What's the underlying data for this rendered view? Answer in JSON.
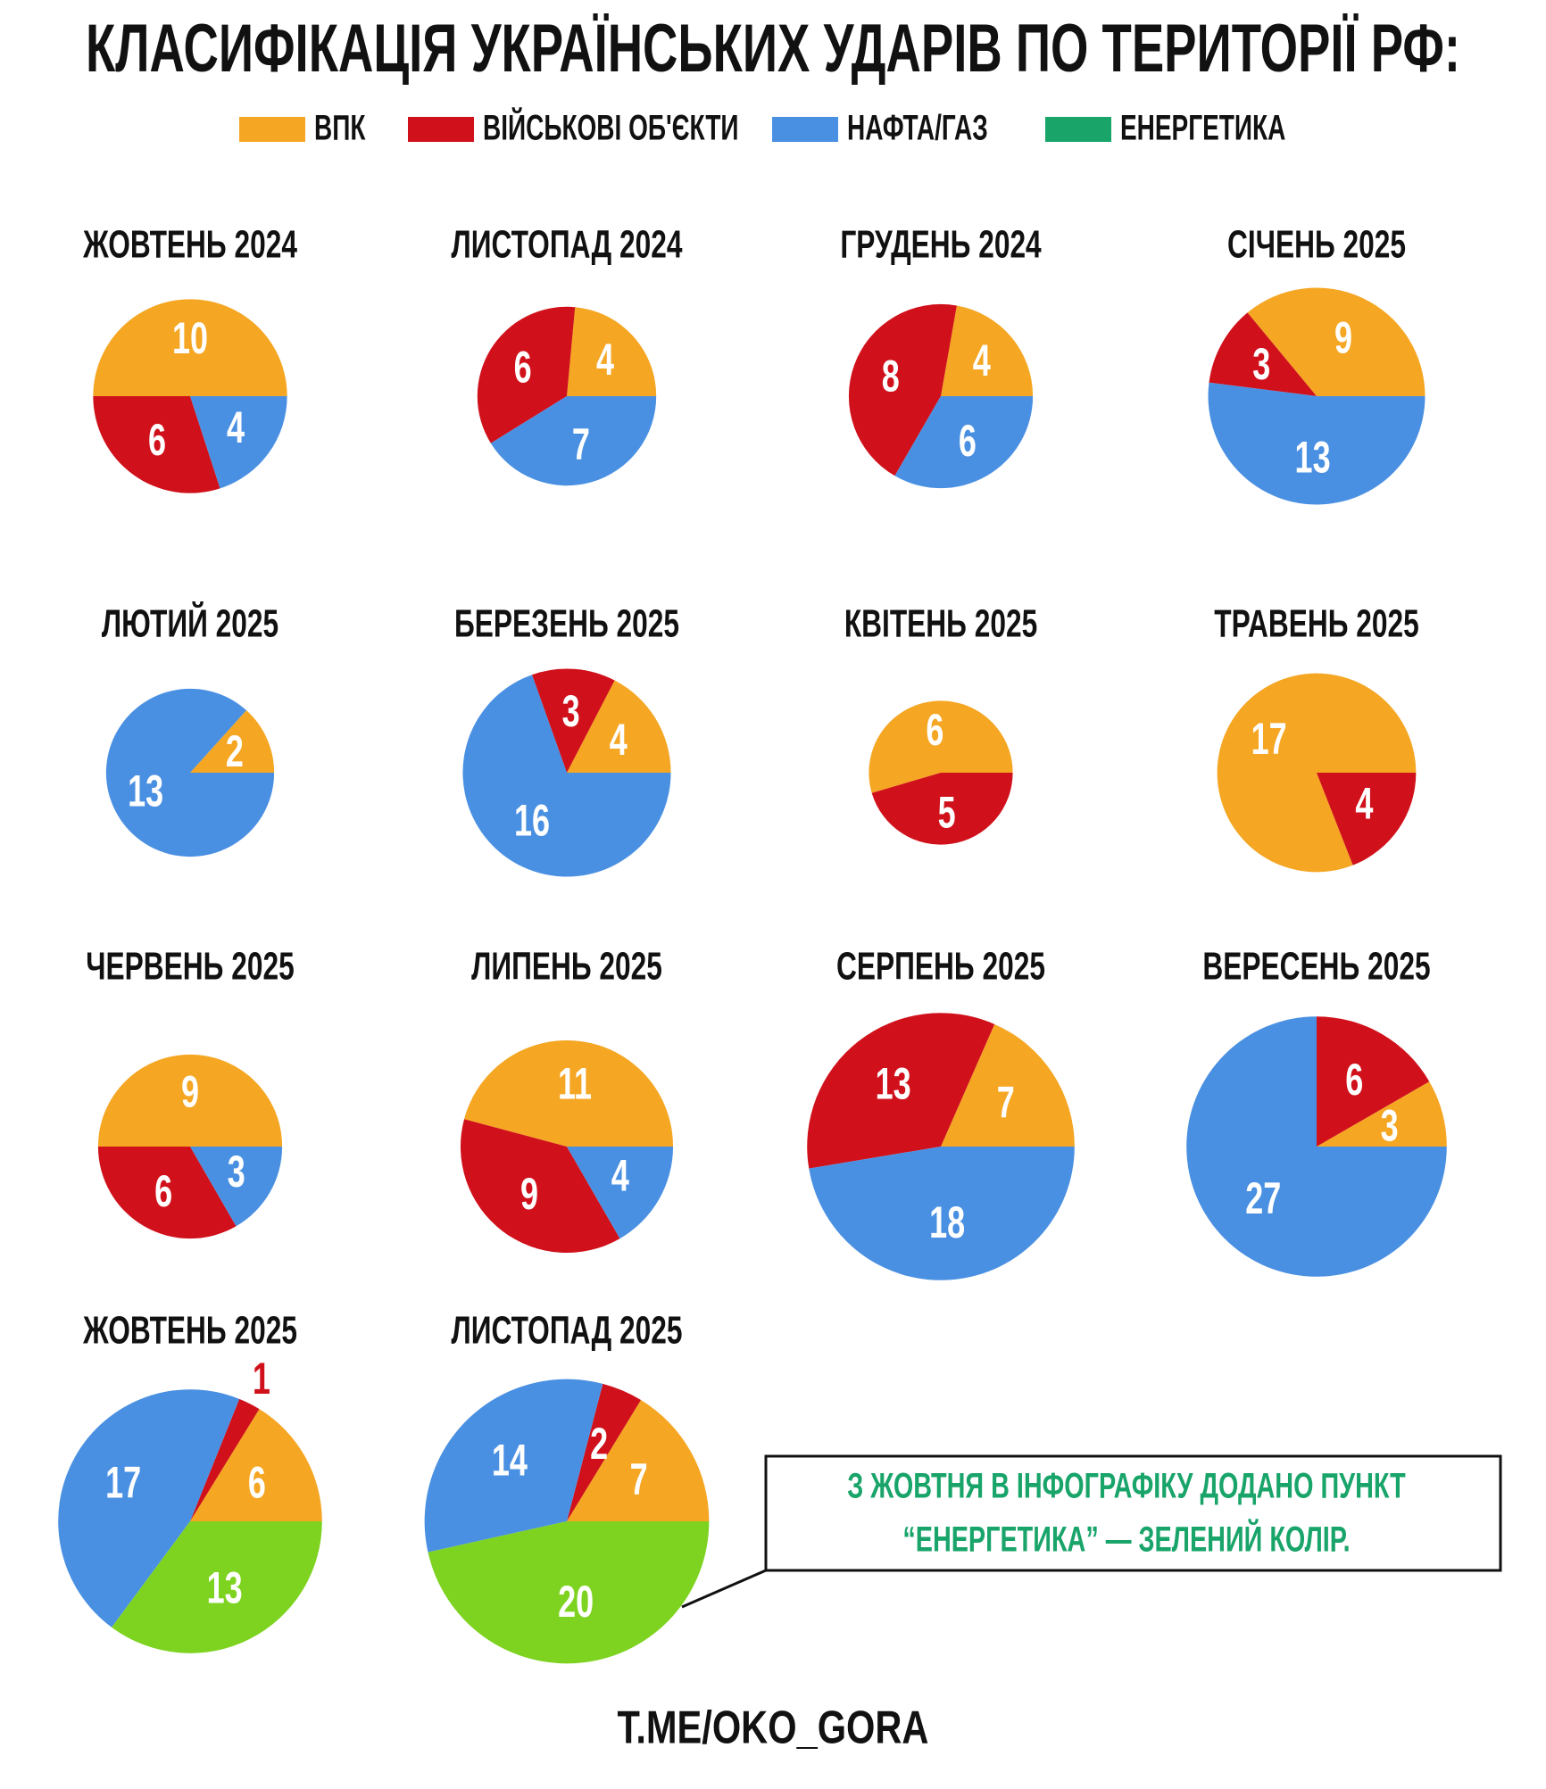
{
  "title": "КЛАСИФІКАЦІЯ УКРАЇНСЬКИХ УДАРІВ ПО ТЕРИТОРІЇ РФ:",
  "legend": [
    {
      "name": "ВПК",
      "color": "#f5a623"
    },
    {
      "name": "ВІЙСЬКОВІ ОБ'ЄКТИ",
      "color": "#d0111b"
    },
    {
      "name": "НАФТА/ГАЗ",
      "color": "#4a90e2"
    },
    {
      "name": "ЕНЕРГЕТИКА",
      "color": "#19a46a"
    }
  ],
  "chart_data": [
    {
      "type": "pie",
      "title": "ЖОВТЕНЬ 2024",
      "values": [
        10,
        6,
        4
      ],
      "colors": [
        "#f5a623",
        "#d0111b",
        "#4a90e2"
      ]
    },
    {
      "type": "pie",
      "title": "ЛИСТОПАД 2024",
      "values": [
        4,
        6,
        7
      ],
      "colors": [
        "#f5a623",
        "#d0111b",
        "#4a90e2"
      ]
    },
    {
      "type": "pie",
      "title": "ГРУДЕНЬ 2024",
      "values": [
        4,
        8,
        6
      ],
      "colors": [
        "#f5a623",
        "#d0111b",
        "#4a90e2"
      ]
    },
    {
      "type": "pie",
      "title": "СІЧЕНЬ 2025",
      "values": [
        9,
        3,
        13
      ],
      "colors": [
        "#f5a623",
        "#d0111b",
        "#4a90e2"
      ]
    },
    {
      "type": "pie",
      "title": "ЛЮТИЙ 2025",
      "values": [
        2,
        13
      ],
      "colors": [
        "#f5a623",
        "#4a90e2"
      ]
    },
    {
      "type": "pie",
      "title": "БЕРЕЗЕНЬ 2025",
      "values": [
        4,
        3,
        16
      ],
      "colors": [
        "#f5a623",
        "#d0111b",
        "#4a90e2"
      ]
    },
    {
      "type": "pie",
      "title": "КВІТЕНЬ 2025",
      "values": [
        6,
        5
      ],
      "colors": [
        "#f5a623",
        "#d0111b"
      ]
    },
    {
      "type": "pie",
      "title": "ТРАВЕНЬ 2025",
      "values": [
        17,
        4
      ],
      "colors": [
        "#f5a623",
        "#d0111b"
      ]
    },
    {
      "type": "pie",
      "title": "ЧЕРВЕНЬ 2025",
      "values": [
        9,
        6,
        3
      ],
      "colors": [
        "#f5a623",
        "#d0111b",
        "#4a90e2"
      ]
    },
    {
      "type": "pie",
      "title": "ЛИПЕНЬ 2025",
      "values": [
        11,
        9,
        4
      ],
      "colors": [
        "#f5a623",
        "#d0111b",
        "#4a90e2"
      ]
    },
    {
      "type": "pie",
      "title": "СЕРПЕНЬ 2025",
      "values": [
        7,
        13,
        18
      ],
      "colors": [
        "#f5a623",
        "#d0111b",
        "#4a90e2"
      ]
    },
    {
      "type": "pie",
      "title": "ВЕРЕСЕНЬ 2025",
      "values": [
        3,
        6,
        27
      ],
      "colors": [
        "#f5a623",
        "#d0111b",
        "#4a90e2"
      ]
    },
    {
      "type": "pie",
      "title": "ЖОВТЕНЬ 2025",
      "values": [
        6,
        1,
        17,
        13
      ],
      "colors": [
        "#f5a623",
        "#d0111b",
        "#4a90e2",
        "#7ed321"
      ]
    },
    {
      "type": "pie",
      "title": "ЛИСТОПАД 2025",
      "values": [
        7,
        2,
        14,
        20
      ],
      "colors": [
        "#f5a623",
        "#d0111b",
        "#4a90e2",
        "#7ed321"
      ]
    }
  ],
  "note": [
    "З ЖОВТНЯ В ІНФОГРАФІКУ ДОДАНО ПУНКТ",
    "“ЕНЕРГЕТИКА” — ЗЕЛЕНИЙ КОЛІР."
  ],
  "footer": "T.ME/OKO_GORA"
}
